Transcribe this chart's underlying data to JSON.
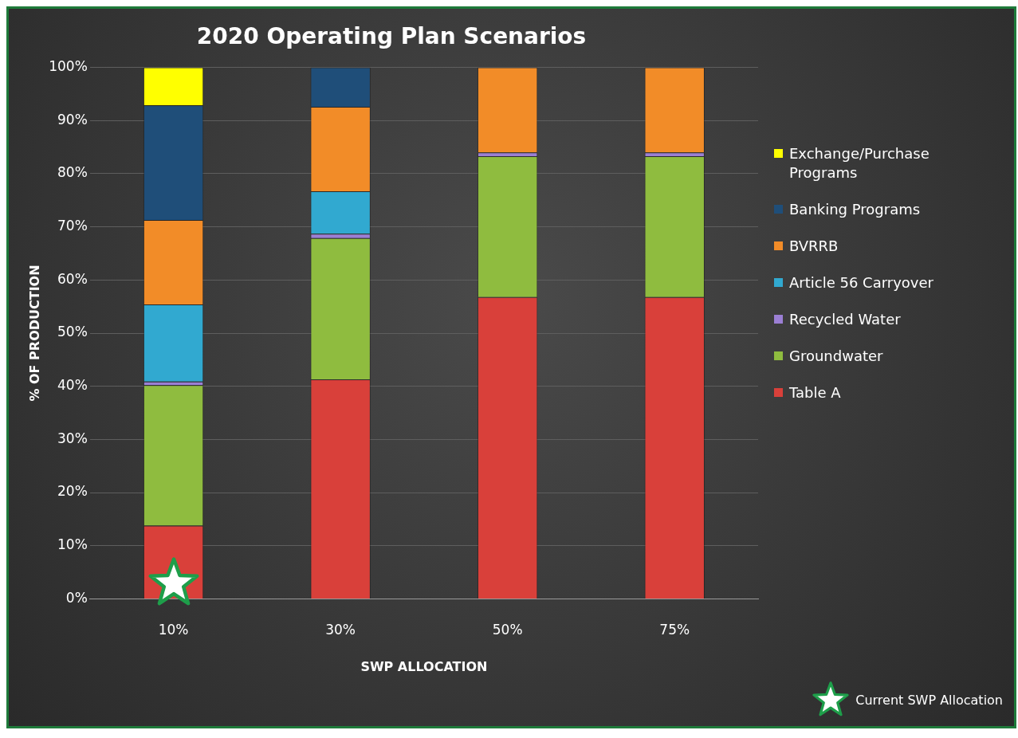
{
  "chart_data": {
    "type": "bar",
    "title": "2020 Operating Plan Scenarios",
    "xlabel": "SWP ALLOCATION",
    "ylabel": "% OF PRODUCTION",
    "categories": [
      "10%",
      "30%",
      "50%",
      "75%"
    ],
    "stacked": true,
    "legend": "right",
    "grid": "y",
    "ylim": [
      0,
      100
    ],
    "yticks": [
      {
        "value": 0,
        "label": "0%"
      },
      {
        "value": 10,
        "label": "10%"
      },
      {
        "value": 20,
        "label": "20%"
      },
      {
        "value": 30,
        "label": "30%"
      },
      {
        "value": 40,
        "label": "40%"
      },
      {
        "value": 50,
        "label": "50%"
      },
      {
        "value": 60,
        "label": "60%"
      },
      {
        "value": 70,
        "label": "70%"
      },
      {
        "value": 80,
        "label": "80%"
      },
      {
        "value": 90,
        "label": "90%"
      },
      {
        "value": 100,
        "label": "100%"
      }
    ],
    "series": [
      {
        "name": "Table A",
        "color": "#d9403a",
        "values": [
          13.8,
          41.3,
          56.8,
          56.8
        ]
      },
      {
        "name": "Groundwater",
        "color": "#8fbc3f",
        "values": [
          26.4,
          26.6,
          26.5,
          26.5
        ]
      },
      {
        "name": "Recycled Water",
        "color": "#9b7fd4",
        "values": [
          0.7,
          0.8,
          0.7,
          0.7
        ]
      },
      {
        "name": "Article 56 Carryover",
        "color": "#31a9d0",
        "values": [
          14.5,
          8.0,
          0,
          0
        ]
      },
      {
        "name": "BVRRB",
        "color": "#f28c28",
        "values": [
          15.9,
          15.9,
          16.0,
          16.0
        ]
      },
      {
        "name": "Banking Programs",
        "color": "#1f4e79",
        "values": [
          21.6,
          7.4,
          0,
          0
        ]
      },
      {
        "name": "Exchange/Purchase Programs",
        "color": "#ffff00",
        "values": [
          7.1,
          0,
          0,
          0
        ]
      }
    ],
    "annotations": [
      "Current SWP Allocation"
    ]
  }
}
